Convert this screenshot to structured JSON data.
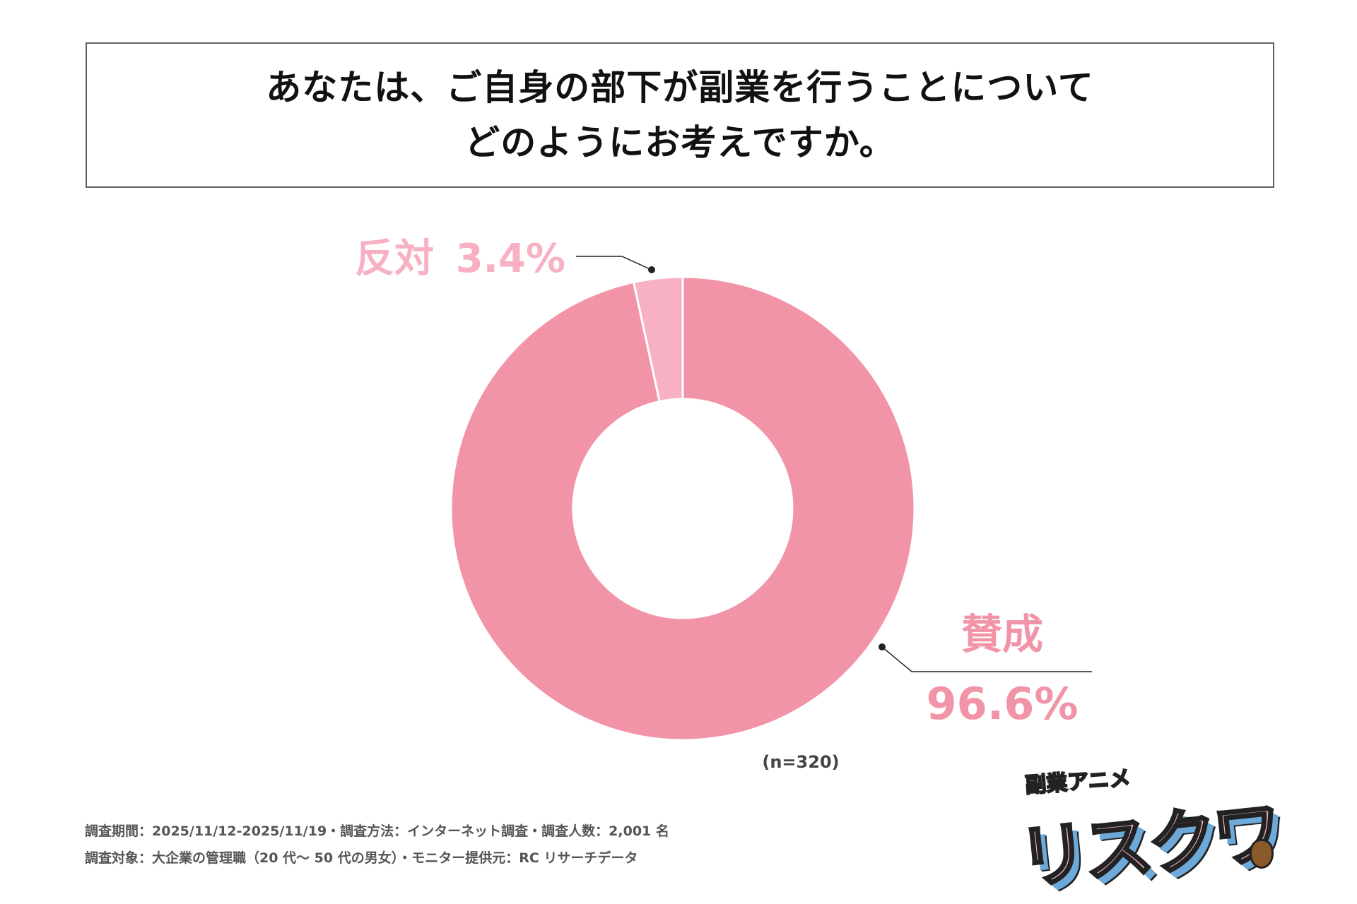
{
  "title": {
    "line1": "あなたは、ご自身の部下が副業を行うことについて",
    "line2": "どのようにお考えですか。"
  },
  "chart_data": {
    "type": "pie",
    "variant": "donut",
    "categories": [
      "賛成",
      "反対"
    ],
    "values": [
      96.6,
      3.4
    ],
    "value_labels": [
      "96.6%",
      "3.4%"
    ],
    "colors": [
      "#f294a8",
      "#f7b1c2"
    ],
    "label_color": "#f294a8",
    "label_color_minor": "#f7b1c2",
    "n_label": "(n=320)"
  },
  "footer": {
    "line1": "調査期間：2025/11/12-2025/11/19・調査方法：インターネット調査・調査人数：2,001 名",
    "line2": "調査対象：大企業の管理職（20 代〜 50 代の男女）・モニター提供元：RC リサーチデータ"
  },
  "logo": {
    "top_text": "副業アニメ",
    "main_text": "リスクワ"
  }
}
